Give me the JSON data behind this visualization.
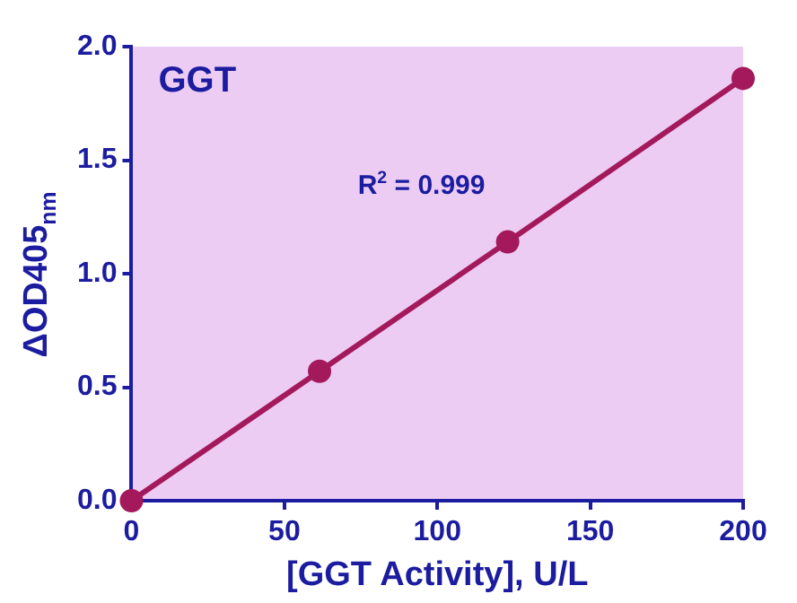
{
  "chart_data": {
    "type": "line",
    "title": "GGT",
    "xlabel": "[GGT Activity], U/L",
    "ylabel": "ΔOD405$_{nm}$",
    "x": [
      0,
      61.5,
      123,
      200
    ],
    "series": [
      {
        "color": "#a3195b",
        "values": [
          0,
          0.57,
          1.14,
          1.86
        ]
      }
    ],
    "xlim": [
      0,
      200
    ],
    "xticks": [
      0,
      50,
      100,
      150,
      200
    ],
    "ylim": [
      0,
      2
    ],
    "yticks": [
      {
        "value": 0,
        "label": "0.0"
      },
      {
        "value": 0.5,
        "label": "0.5"
      },
      {
        "value": 1,
        "label": "1.0"
      },
      {
        "value": 1.5,
        "label": "1.5"
      },
      {
        "value": 2,
        "label": "2.0"
      }
    ],
    "annotations": [
      "R$^{2}$ = 0.999"
    ],
    "grid": false,
    "legend": false,
    "marker": "circle",
    "line_style": "solid"
  }
}
